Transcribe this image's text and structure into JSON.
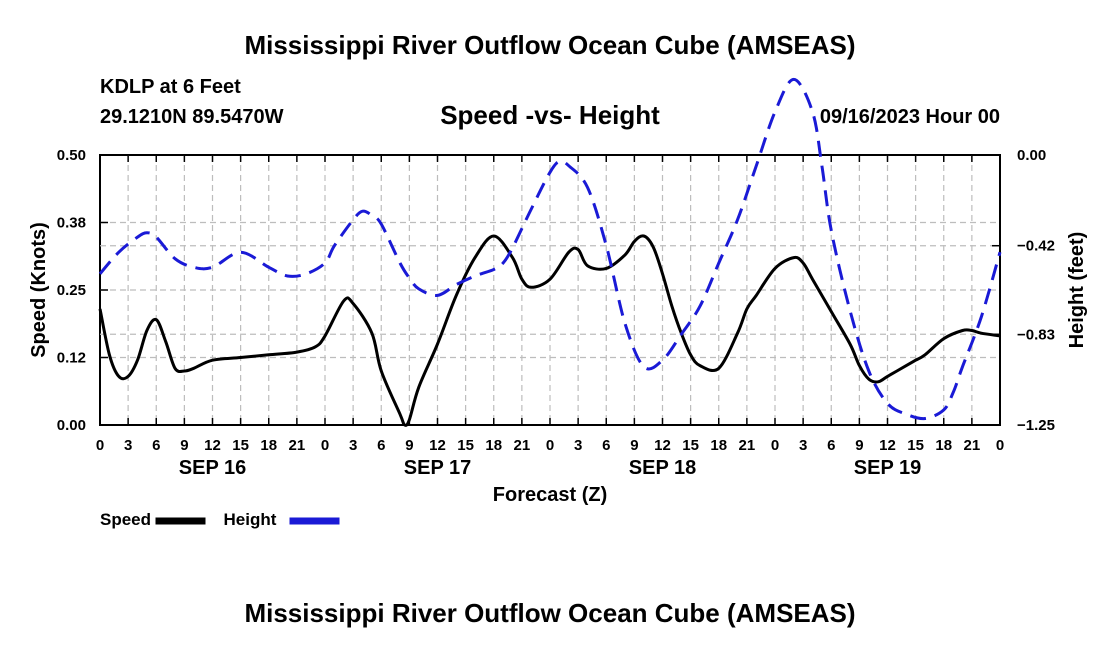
{
  "header": {
    "title": "Mississippi River Outflow Ocean Cube (AMSEAS)",
    "station": "KDLP at 6 Feet",
    "coordinates": "29.1210N  89.5470W",
    "subtitle": "Speed -vs- Height",
    "timestamp": "09/16/2023 Hour 00"
  },
  "footer": {
    "title": "Mississippi River Outflow Ocean Cube (AMSEAS)"
  },
  "chart_data": {
    "type": "line",
    "title": "Speed -vs- Height",
    "xlabel": "Forecast (Z)",
    "ylabel_left": "Speed (Knots)",
    "ylabel_right": "Height (feet)",
    "x_range": [
      0,
      96
    ],
    "x_tick_step_hours": 3,
    "x_tick_labels": [
      "0",
      "3",
      "6",
      "9",
      "12",
      "15",
      "18",
      "21",
      "0",
      "3",
      "6",
      "9",
      "12",
      "15",
      "18",
      "21",
      "0",
      "3",
      "6",
      "9",
      "12",
      "15",
      "18",
      "21",
      "0",
      "3",
      "6",
      "9",
      "12",
      "15",
      "18",
      "21",
      "0"
    ],
    "day_labels": [
      {
        "label": "SEP 16",
        "hour": 12
      },
      {
        "label": "SEP 17",
        "hour": 36
      },
      {
        "label": "SEP 18",
        "hour": 60
      },
      {
        "label": "SEP 19",
        "hour": 84
      }
    ],
    "y_left": {
      "range": [
        0,
        0.5
      ],
      "ticks": [
        0.0,
        0.125,
        0.25,
        0.375,
        0.5
      ],
      "tick_labels": [
        "0.00",
        "0.12",
        "0.25",
        "0.38",
        "0.50"
      ]
    },
    "y_right": {
      "range": [
        -1.25,
        0.0
      ],
      "ticks": [
        -1.25,
        -0.83,
        -0.42,
        0.0
      ],
      "tick_labels": [
        "−1.25",
        "−0.83",
        "−0.42",
        "0.00"
      ]
    },
    "grid": true,
    "legend_position": "bottom-left",
    "series": [
      {
        "name": "Speed",
        "axis": "left",
        "color": "#000000",
        "dash": "solid",
        "x": [
          0,
          1,
          2,
          3,
          4,
          5,
          6,
          7,
          8,
          9,
          10,
          12,
          15,
          18,
          21,
          23,
          24,
          26,
          27,
          29,
          30,
          32,
          32.5,
          33,
          34,
          36,
          38,
          40,
          42,
          44,
          45,
          46,
          48,
          50,
          51,
          52,
          54,
          56,
          57,
          58,
          59,
          60,
          61,
          62,
          63,
          64,
          66,
          68,
          69,
          70,
          72,
          74,
          75,
          76,
          78,
          80,
          81,
          82,
          83,
          84,
          86,
          87,
          88,
          90,
          92,
          93,
          94,
          96
        ],
        "values": [
          0.215,
          0.13,
          0.09,
          0.09,
          0.12,
          0.175,
          0.195,
          0.155,
          0.105,
          0.1,
          0.105,
          0.12,
          0.125,
          0.13,
          0.135,
          0.145,
          0.165,
          0.23,
          0.225,
          0.17,
          0.1,
          0.02,
          0.0,
          0.01,
          0.07,
          0.15,
          0.24,
          0.31,
          0.35,
          0.31,
          0.27,
          0.255,
          0.27,
          0.32,
          0.325,
          0.295,
          0.29,
          0.315,
          0.34,
          0.35,
          0.33,
          0.28,
          0.22,
          0.17,
          0.13,
          0.11,
          0.105,
          0.17,
          0.215,
          0.24,
          0.29,
          0.31,
          0.3,
          0.27,
          0.21,
          0.15,
          0.11,
          0.085,
          0.08,
          0.09,
          0.11,
          0.12,
          0.13,
          0.16,
          0.175,
          0.175,
          0.17,
          0.165
        ]
      },
      {
        "name": "Height",
        "axis": "right",
        "color": "#1a1ad6",
        "dash": "dashed",
        "x": [
          0,
          2,
          4,
          5,
          6,
          8,
          10,
          12,
          15,
          18,
          20,
          22,
          24,
          25,
          27,
          28,
          29,
          30,
          32,
          33,
          34,
          36,
          38,
          40,
          42,
          43,
          44,
          46,
          48,
          49,
          50,
          52,
          54,
          56,
          58,
          60,
          62,
          64,
          66,
          68,
          70,
          72,
          74,
          76,
          77,
          78,
          80,
          82,
          84,
          86,
          88,
          90,
          91,
          92,
          94,
          96
        ],
        "values": [
          -0.55,
          -0.45,
          -0.38,
          -0.36,
          -0.38,
          -0.48,
          -0.52,
          -0.52,
          -0.45,
          -0.52,
          -0.56,
          -0.55,
          -0.5,
          -0.42,
          -0.3,
          -0.26,
          -0.28,
          -0.32,
          -0.5,
          -0.57,
          -0.62,
          -0.65,
          -0.6,
          -0.56,
          -0.53,
          -0.5,
          -0.43,
          -0.25,
          -0.08,
          -0.03,
          -0.05,
          -0.15,
          -0.42,
          -0.78,
          -0.98,
          -0.95,
          -0.83,
          -0.7,
          -0.5,
          -0.3,
          -0.05,
          0.2,
          0.35,
          0.2,
          -0.05,
          -0.35,
          -0.72,
          -1.0,
          -1.15,
          -1.2,
          -1.22,
          -1.18,
          -1.1,
          -0.98,
          -0.75,
          -0.45
        ]
      }
    ]
  }
}
